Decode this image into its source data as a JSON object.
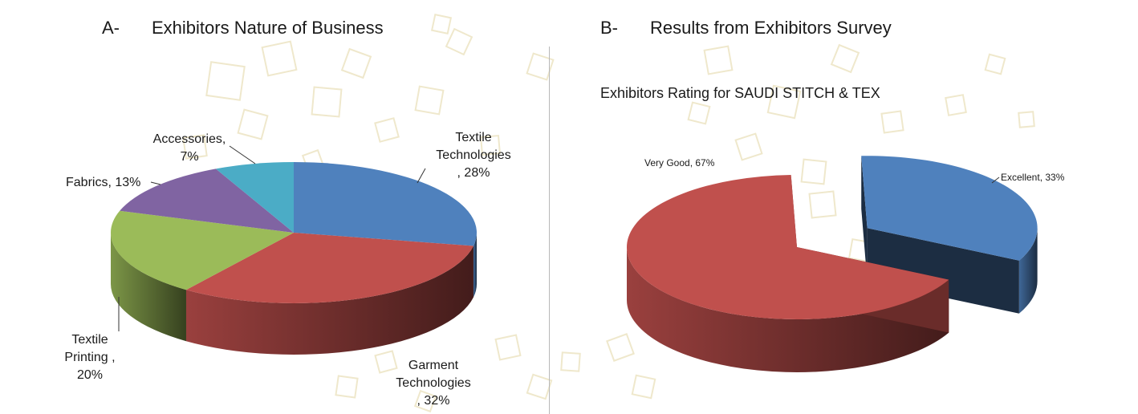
{
  "panels": {
    "a": {
      "letter": "A-",
      "title": "Exhibitors Nature of Business"
    },
    "b": {
      "letter": "B-",
      "title": "Results from Exhibitors Survey",
      "subtitle": "Exhibitors Rating for SAUDI STITCH & TEX"
    }
  },
  "chart_data": [
    {
      "type": "pie",
      "title": "Exhibitors Nature of Business",
      "style": "3d-pie",
      "slices": [
        {
          "label": "Textile Technologies",
          "value": 28,
          "color": "#4f81bd",
          "data_label": [
            "Textile",
            "Technologies",
            ", 28%"
          ]
        },
        {
          "label": "Garment Technologies",
          "value": 32,
          "color": "#c0504d",
          "data_label": [
            "Garment",
            "Technologies",
            ", 32%"
          ]
        },
        {
          "label": "Textile Printing",
          "value": 20,
          "color": "#9bbb59",
          "data_label": [
            "Textile",
            "Printing ,",
            "20%"
          ]
        },
        {
          "label": "Fabrics",
          "value": 13,
          "color": "#8064a2",
          "data_label": [
            "Fabrics, 13%"
          ]
        },
        {
          "label": "Accessories",
          "value": 7,
          "color": "#4bacc6",
          "data_label": [
            "Accessories,",
            "7%"
          ]
        }
      ]
    },
    {
      "type": "pie",
      "title": "Exhibitors Rating for SAUDI STITCH & TEX",
      "style": "3d-pie-exploded",
      "slices": [
        {
          "label": "Excellent",
          "value": 33,
          "color": "#4f81bd",
          "data_label": [
            "Excellent, 33%"
          ],
          "exploded": true
        },
        {
          "label": "Very Good",
          "value": 67,
          "color": "#c0504d",
          "data_label": [
            "Very Good, 67%"
          ]
        }
      ]
    }
  ]
}
